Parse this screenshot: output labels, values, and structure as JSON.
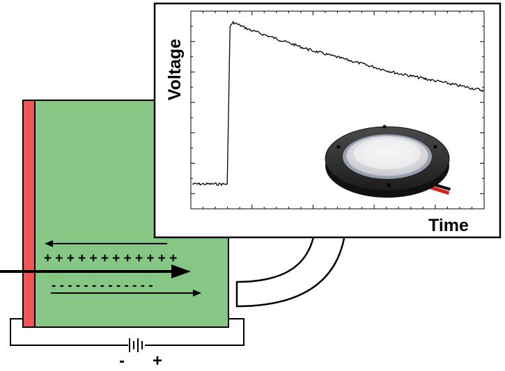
{
  "plot": {
    "ylabel": "Voltage",
    "xlabel": "Time"
  },
  "sample": {
    "top_charges": "+ + + + + + + + + + + +",
    "bottom_charges": "- - - - - - - - - - - - -"
  },
  "battery": {
    "negative_label": "-",
    "positive_label": "+"
  },
  "colors": {
    "sample_fill": "#86c786",
    "electrode": "#ee5555",
    "disc_membrane": "#e4e4e6",
    "disc_frame": "#333333"
  },
  "chart_data": {
    "type": "line",
    "xlabel": "Time",
    "ylabel": "Voltage",
    "grid": false,
    "series": [
      {
        "x": [
          0,
          0.12,
          0.13,
          0.14,
          0.2,
          0.3,
          0.4,
          0.5,
          0.6,
          0.7,
          0.8,
          0.9,
          1.0
        ],
        "y": [
          0.12,
          0.12,
          0.93,
          0.95,
          0.91,
          0.86,
          0.81,
          0.77,
          0.73,
          0.69,
          0.66,
          0.63,
          0.6
        ]
      }
    ]
  }
}
